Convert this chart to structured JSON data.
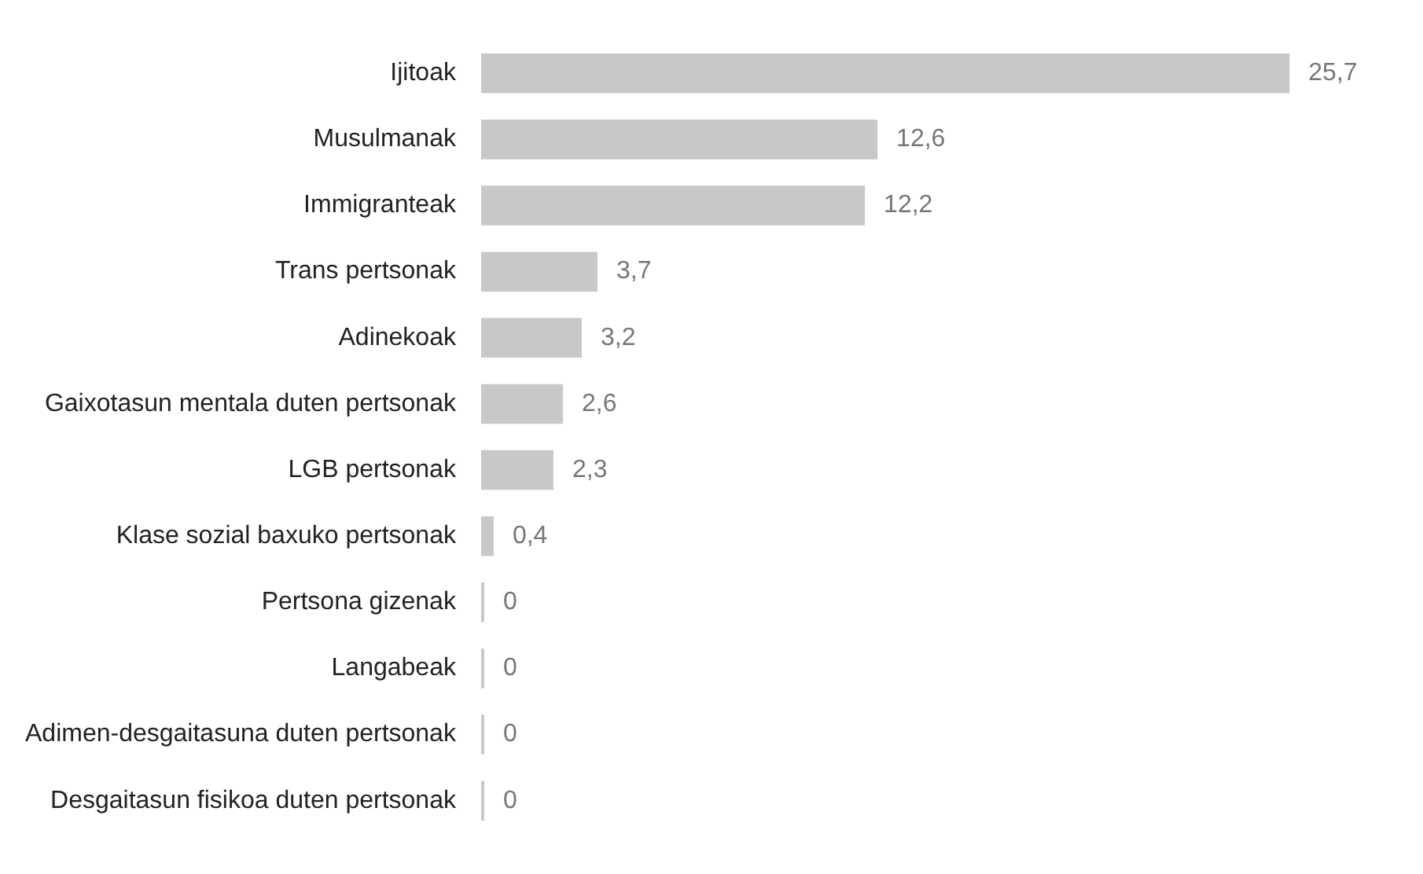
{
  "chart_data": {
    "type": "bar",
    "orientation": "horizontal",
    "categories": [
      "Ijitoak",
      "Musulmanak",
      "Immigranteak",
      "Trans pertsonak",
      "Adinekoak",
      "Gaixotasun mentala duten pertsonak",
      "LGB pertsonak",
      "Klase sozial baxuko pertsonak",
      "Pertsona gizenak",
      "Langabeak",
      "Adimen-desgaitasuna duten pertsonak",
      "Desgaitasun fisikoa duten pertsonak"
    ],
    "values": [
      25.7,
      12.6,
      12.2,
      3.7,
      3.2,
      2.6,
      2.3,
      0.4,
      0,
      0,
      0,
      0
    ],
    "value_labels": [
      "25,7",
      "12,6",
      "12,2",
      "3,7",
      "3,2",
      "2,6",
      "2,3",
      "0,4",
      "0",
      "0",
      "0",
      "0"
    ],
    "color": "#c8c8c8"
  }
}
